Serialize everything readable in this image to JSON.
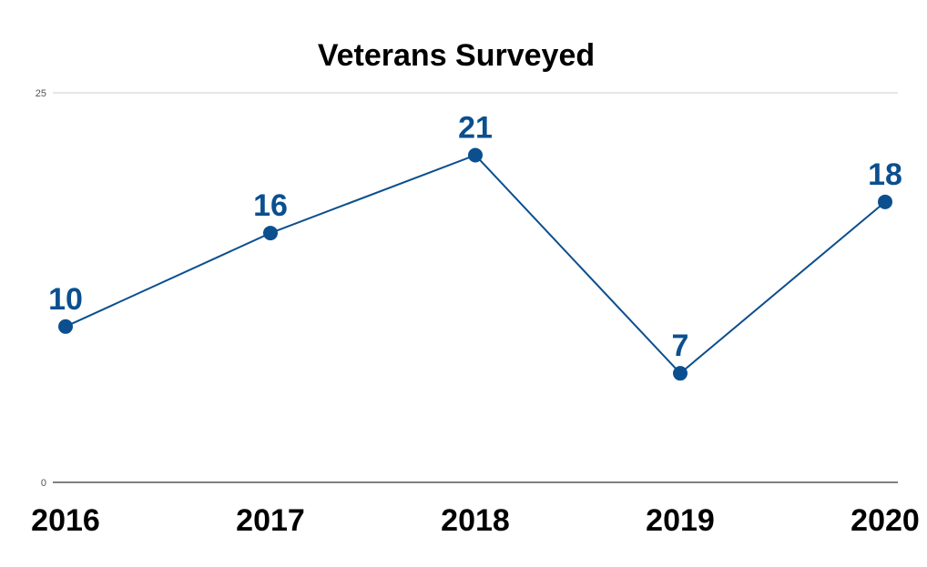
{
  "chart_data": {
    "type": "line",
    "title": "Veterans Surveyed",
    "xlabel": "",
    "ylabel": "",
    "categories": [
      "2016",
      "2017",
      "2018",
      "2019",
      "2020"
    ],
    "series": [
      {
        "values": [
          10,
          16,
          21,
          7,
          18
        ]
      }
    ],
    "data_labels": [
      "10",
      "16",
      "21",
      "7",
      "18"
    ],
    "ylim": [
      0,
      25
    ],
    "yticks": [
      "0",
      "25"
    ],
    "grid": true,
    "legend": "none",
    "colors": {
      "line": "#0b4f8f",
      "gridline": "#cccccc",
      "baseline": "#000000"
    }
  }
}
